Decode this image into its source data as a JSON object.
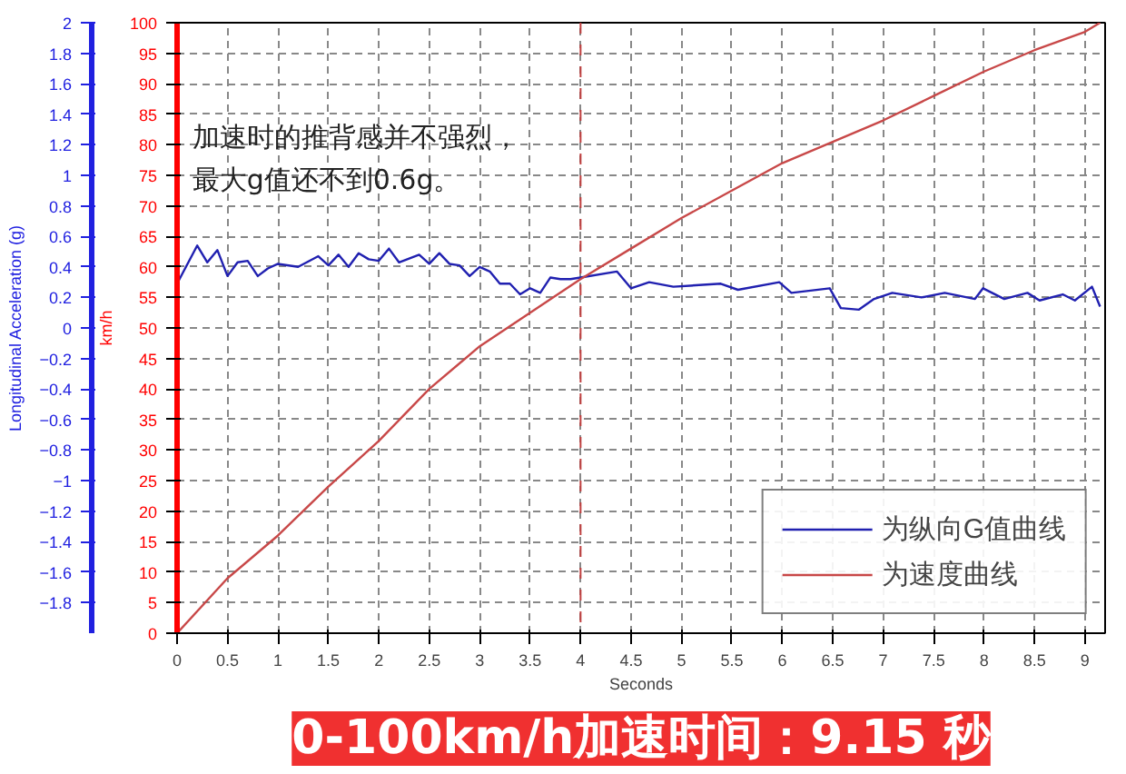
{
  "chart_data": {
    "type": "line",
    "title": "0-100km/h加速时间：9.15 秒",
    "xlabel": "Seconds",
    "ylabel": "km/h",
    "y2label": "Longitudinal Acceleration (g)",
    "xlim": [
      0,
      9.2
    ],
    "xticks": [
      0,
      0.5,
      1,
      1.5,
      2,
      2.5,
      3,
      3.5,
      4,
      4.5,
      5,
      5.5,
      6,
      6.5,
      7,
      7.5,
      8,
      8.5,
      9
    ],
    "ylim": [
      0,
      100
    ],
    "yticks": [
      0,
      5,
      10,
      15,
      20,
      25,
      30,
      35,
      40,
      45,
      50,
      55,
      60,
      65,
      70,
      75,
      80,
      85,
      90,
      95,
      100
    ],
    "y2lim": [
      -2,
      2
    ],
    "y2ticks": [
      -1.8,
      -1.6,
      -1.4,
      -1.2,
      -1,
      -0.8,
      -0.6,
      -0.4,
      -0.2,
      0,
      0.2,
      0.4,
      0.6,
      0.8,
      1,
      1.2,
      1.4,
      1.6,
      1.8,
      2
    ],
    "series": [
      {
        "name": "为纵向G值曲线",
        "color": "#2020b0",
        "axis": "y2",
        "x": [
          0,
          0.2,
          0.3,
          0.4,
          0.5,
          0.6,
          0.7,
          0.8,
          0.9,
          1.0,
          1.2,
          1.4,
          1.5,
          1.6,
          1.7,
          1.8,
          1.9,
          2.0,
          2.1,
          2.2,
          2.4,
          2.5,
          2.6,
          2.7,
          2.8,
          2.9,
          3.0,
          3.1,
          3.2,
          3.3,
          3.4,
          3.5,
          3.6,
          3.7,
          3.8,
          3.9,
          4.0,
          4.36,
          4.5,
          4.68,
          4.92,
          5.39,
          5.56,
          5.97,
          6.09,
          6.47,
          6.58,
          6.76,
          6.91,
          7.09,
          7.38,
          7.61,
          7.91,
          7.99,
          8.2,
          8.43,
          8.55,
          8.78,
          8.9,
          9.07,
          9.15
        ],
        "values": [
          0.29,
          0.54,
          0.43,
          0.51,
          0.34,
          0.43,
          0.44,
          0.34,
          0.39,
          0.42,
          0.4,
          0.47,
          0.41,
          0.48,
          0.4,
          0.49,
          0.45,
          0.44,
          0.52,
          0.43,
          0.48,
          0.42,
          0.49,
          0.42,
          0.41,
          0.34,
          0.4,
          0.37,
          0.29,
          0.29,
          0.22,
          0.26,
          0.23,
          0.33,
          0.32,
          0.32,
          0.33,
          0.37,
          0.26,
          0.3,
          0.27,
          0.29,
          0.25,
          0.3,
          0.23,
          0.26,
          0.13,
          0.12,
          0.19,
          0.23,
          0.2,
          0.23,
          0.19,
          0.26,
          0.19,
          0.23,
          0.18,
          0.22,
          0.18,
          0.27,
          0.14
        ]
      },
      {
        "name": "为速度曲线",
        "color": "#c84848",
        "x": [
          0,
          0.5,
          1,
          1.5,
          2,
          2.5,
          3,
          3.5,
          4,
          4.5,
          5,
          5.5,
          6,
          6.5,
          7,
          7.5,
          8,
          8.5,
          9,
          9.15
        ],
        "values": [
          0,
          9,
          16,
          24,
          31.5,
          40,
          47,
          52.5,
          58,
          63,
          68,
          72.5,
          77,
          80.5,
          84,
          88,
          92,
          95.5,
          98.5,
          100
        ]
      }
    ],
    "ref_lines": [
      {
        "axis": "x",
        "value": 4,
        "color": "#c04040",
        "line_style": "dashed"
      }
    ],
    "annotations": [
      "加速时的推背感并不强烈，",
      "最大g值还不到0.6g。"
    ],
    "grid": true,
    "legend": "bottom right",
    "line_style": "solid",
    "marker": "none"
  }
}
